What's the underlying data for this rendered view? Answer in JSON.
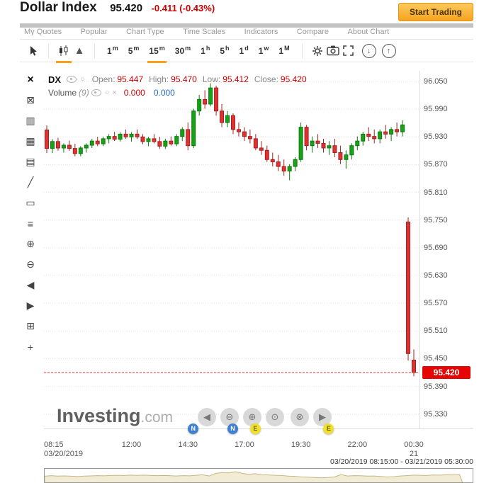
{
  "header": {
    "title": "Dollar Index",
    "price": "95.420",
    "change": "-0.411 (-0.43%)",
    "start_trading": "Start Trading"
  },
  "menu": {
    "items": [
      "My Quotes",
      "Popular",
      "Chart Type",
      "Time Scales",
      "Indicators",
      "Compare",
      "About Chart"
    ]
  },
  "toolbar": {
    "timeframes": [
      {
        "n": "1",
        "u": "m"
      },
      {
        "n": "5",
        "u": "m"
      },
      {
        "n": "15",
        "u": "m"
      },
      {
        "n": "30",
        "u": "m"
      },
      {
        "n": "1",
        "u": "h"
      },
      {
        "n": "5",
        "u": "h"
      },
      {
        "n": "1",
        "u": "d"
      },
      {
        "n": "1",
        "u": "w"
      },
      {
        "n": "1",
        "u": "M"
      }
    ],
    "active_index": 2,
    "active_chart_type": "candlestick",
    "circle_buttons": [
      {
        "name": "download",
        "glyph": "↓"
      },
      {
        "name": "upload",
        "glyph": "↑"
      }
    ]
  },
  "tools": {
    "items": [
      {
        "name": "close",
        "glyph": "×"
      },
      {
        "name": "crosshair",
        "glyph": "⊠"
      },
      {
        "name": "chart-bars",
        "glyph": "▥"
      },
      {
        "name": "chart-candles",
        "glyph": "▦"
      },
      {
        "name": "chart-area",
        "glyph": "▤"
      },
      {
        "name": "trendline",
        "glyph": "╱"
      },
      {
        "name": "rectangle",
        "glyph": "▭"
      },
      {
        "name": "fib-retracement",
        "glyph": "≡"
      },
      {
        "name": "zoom-in",
        "glyph": "⊕"
      },
      {
        "name": "zoom-out",
        "glyph": "⊖"
      },
      {
        "name": "pan-left",
        "glyph": "◀"
      },
      {
        "name": "pan-right",
        "glyph": "▶"
      },
      {
        "name": "zoom-select",
        "glyph": "⊞"
      },
      {
        "name": "move",
        "glyph": "+"
      }
    ]
  },
  "legend": {
    "symbol": "DX",
    "fields": [
      {
        "label": "Open:",
        "value": "95.447"
      },
      {
        "label": "High:",
        "value": "95.470"
      },
      {
        "label": "Low:",
        "value": "95.412"
      },
      {
        "label": "Close:",
        "value": "95.420"
      }
    ],
    "volume_label": "Volume",
    "volume_count": "(9)",
    "volume_red": "0.000",
    "volume_blue": "0.000",
    "icons": {
      "circle": "○",
      "close": "×"
    }
  },
  "watermark": {
    "brand": "Investing",
    "suffix": ".com"
  },
  "nav": {
    "buttons": [
      {
        "name": "pan-left",
        "glyph": "◀"
      },
      {
        "name": "zoom-out",
        "glyph": "⊖"
      },
      {
        "name": "zoom-in",
        "glyph": "⊕"
      },
      {
        "name": "zoom-last",
        "glyph": "⊙"
      },
      {
        "name": "zoom-all",
        "glyph": "⊗"
      },
      {
        "name": "pan-right",
        "glyph": "▶"
      }
    ]
  },
  "footer": {
    "range": "03/20/2019 08:15:00 - 03/21/2019 05:30:00"
  },
  "chart_data": {
    "type": "candlestick",
    "symbol": "DX",
    "timeframe": "15m",
    "title": "Dollar Index 15-minute candlestick chart",
    "y_min": 95.299,
    "y_max": 96.073,
    "y_ticks": [
      96.05,
      95.99,
      95.93,
      95.87,
      95.81,
      95.75,
      95.69,
      95.63,
      95.57,
      95.51,
      95.45,
      95.39,
      95.33
    ],
    "current_price": "95.420",
    "grid": true,
    "x_axis": [
      {
        "label": "08:15",
        "sub": "03/20/2019",
        "index": 0
      },
      {
        "label": "12:00",
        "index": 15
      },
      {
        "label": "14:30",
        "index": 25
      },
      {
        "label": "17:00",
        "index": 35
      },
      {
        "label": "19:30",
        "index": 45
      },
      {
        "label": "22:00",
        "index": 55
      },
      {
        "label": "00:30",
        "sub": "21",
        "index": 65
      }
    ],
    "events": [
      {
        "label": "N",
        "index": 26,
        "color": "#3e7fd1",
        "text_color": "#ffffff"
      },
      {
        "label": "N",
        "index": 33,
        "color": "#3e7fd1",
        "text_color": "#ffffff"
      },
      {
        "label": "E",
        "index": 37,
        "color": "#f0df2b",
        "text_color": "#6b6b00"
      },
      {
        "label": "E",
        "index": 50,
        "color": "#f0df2b",
        "text_color": "#6b6b00"
      }
    ],
    "colors": {
      "up": "#17a217",
      "up_border": "#0c7a0c",
      "down": "#e03232",
      "down_border": "#a32020",
      "price_line": "#e03232",
      "grid": "#e2e2e2",
      "tag_bg": "#e60505"
    },
    "candles": [
      [
        95.945,
        95.955,
        95.895,
        95.905
      ],
      [
        95.905,
        95.925,
        95.895,
        95.92
      ],
      [
        95.92,
        95.928,
        95.9,
        95.906
      ],
      [
        95.906,
        95.916,
        95.896,
        95.912
      ],
      [
        95.912,
        95.922,
        95.9,
        95.905
      ],
      [
        95.905,
        95.915,
        95.888,
        95.894
      ],
      [
        95.894,
        95.91,
        95.888,
        95.906
      ],
      [
        95.906,
        95.916,
        95.896,
        95.912
      ],
      [
        95.912,
        95.926,
        95.906,
        95.921
      ],
      [
        95.921,
        95.93,
        95.91,
        95.915
      ],
      [
        95.915,
        95.93,
        95.91,
        95.926
      ],
      [
        95.926,
        95.936,
        95.916,
        95.931
      ],
      [
        95.931,
        95.941,
        95.921,
        95.925
      ],
      [
        95.925,
        95.94,
        95.92,
        95.936
      ],
      [
        95.936,
        95.946,
        95.926,
        95.93
      ],
      [
        95.93,
        95.94,
        95.92,
        95.936
      ],
      [
        95.936,
        95.946,
        95.926,
        95.93
      ],
      [
        95.93,
        95.936,
        95.914,
        95.92
      ],
      [
        95.92,
        95.93,
        95.91,
        95.926
      ],
      [
        95.926,
        95.936,
        95.916,
        95.92
      ],
      [
        95.92,
        95.93,
        95.904,
        95.91
      ],
      [
        95.91,
        95.926,
        95.904,
        95.921
      ],
      [
        95.921,
        95.931,
        95.911,
        95.915
      ],
      [
        95.915,
        95.936,
        95.91,
        95.931
      ],
      [
        95.931,
        95.951,
        95.921,
        95.946
      ],
      [
        95.946,
        95.961,
        95.901,
        95.911
      ],
      [
        95.911,
        95.991,
        95.906,
        95.986
      ],
      [
        95.986,
        96.021,
        95.976,
        96.011
      ],
      [
        96.011,
        96.031,
        95.991,
        96.001
      ],
      [
        96.001,
        96.046,
        95.996,
        96.036
      ],
      [
        96.036,
        96.041,
        95.976,
        95.986
      ],
      [
        95.986,
        96.001,
        95.951,
        95.961
      ],
      [
        95.961,
        95.986,
        95.951,
        95.976
      ],
      [
        95.976,
        95.981,
        95.936,
        95.946
      ],
      [
        95.946,
        95.961,
        95.931,
        95.941
      ],
      [
        95.941,
        95.951,
        95.921,
        95.931
      ],
      [
        95.931,
        95.946,
        95.916,
        95.926
      ],
      [
        95.926,
        95.936,
        95.901,
        95.906
      ],
      [
        95.906,
        95.921,
        95.891,
        95.901
      ],
      [
        95.901,
        95.911,
        95.876,
        95.881
      ],
      [
        95.881,
        95.896,
        95.866,
        95.876
      ],
      [
        95.876,
        95.891,
        95.856,
        95.866
      ],
      [
        95.866,
        95.881,
        95.846,
        95.856
      ],
      [
        95.856,
        95.871,
        95.836,
        95.866
      ],
      [
        95.866,
        95.886,
        95.856,
        95.881
      ],
      [
        95.881,
        95.961,
        95.876,
        95.951
      ],
      [
        95.951,
        95.956,
        95.901,
        95.911
      ],
      [
        95.911,
        95.931,
        95.896,
        95.921
      ],
      [
        95.921,
        95.936,
        95.906,
        95.916
      ],
      [
        95.916,
        95.926,
        95.896,
        95.906
      ],
      [
        95.906,
        95.921,
        95.891,
        95.911
      ],
      [
        95.911,
        95.926,
        95.886,
        95.896
      ],
      [
        95.896,
        95.911,
        95.871,
        95.881
      ],
      [
        95.881,
        95.901,
        95.861,
        95.891
      ],
      [
        95.891,
        95.916,
        95.881,
        95.911
      ],
      [
        95.911,
        95.931,
        95.901,
        95.921
      ],
      [
        95.921,
        95.941,
        95.911,
        95.936
      ],
      [
        95.936,
        95.951,
        95.921,
        95.931
      ],
      [
        95.931,
        95.946,
        95.916,
        95.926
      ],
      [
        95.926,
        95.946,
        95.916,
        95.941
      ],
      [
        95.941,
        95.956,
        95.926,
        95.936
      ],
      [
        95.936,
        95.951,
        95.921,
        95.946
      ],
      [
        95.946,
        95.961,
        95.931,
        95.941
      ],
      [
        95.941,
        95.966,
        95.931,
        95.956
      ],
      [
        95.746,
        95.756,
        95.446,
        95.461
      ],
      [
        95.447,
        95.47,
        95.412,
        95.42
      ]
    ]
  }
}
